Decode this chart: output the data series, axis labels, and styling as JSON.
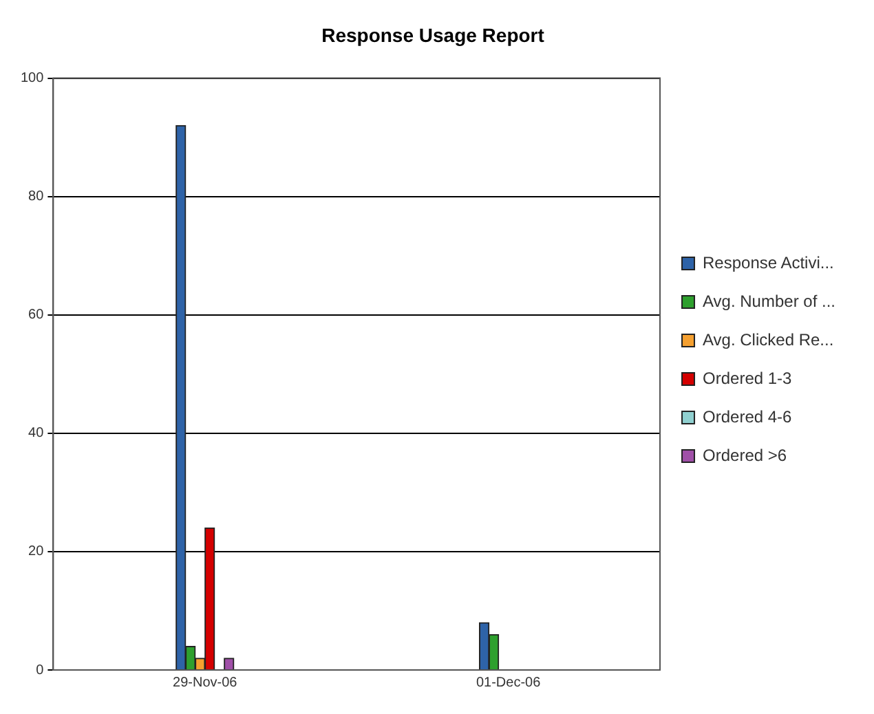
{
  "chart_data": {
    "type": "bar",
    "title": "Response Usage Report",
    "categories": [
      "29-Nov-06",
      "01-Dec-06"
    ],
    "series": [
      {
        "name": "Response Activi...",
        "color": "#2e63a8",
        "values": [
          92,
          8
        ]
      },
      {
        "name": "Avg. Number of ...",
        "color": "#2ea02e",
        "values": [
          4,
          6
        ]
      },
      {
        "name": "Avg. Clicked Re...",
        "color": "#f5a030",
        "values": [
          2,
          0
        ]
      },
      {
        "name": "Ordered 1-3",
        "color": "#d40000",
        "values": [
          24,
          0
        ]
      },
      {
        "name": "Ordered 4-6",
        "color": "#90d0d0",
        "values": [
          0,
          0
        ]
      },
      {
        "name": "Ordered >6",
        "color": "#a050a8",
        "values": [
          2,
          0
        ]
      }
    ],
    "ylim": [
      0,
      100
    ],
    "yticks": [
      0,
      20,
      40,
      60,
      80,
      100
    ],
    "grid": "y",
    "legend": "right"
  }
}
